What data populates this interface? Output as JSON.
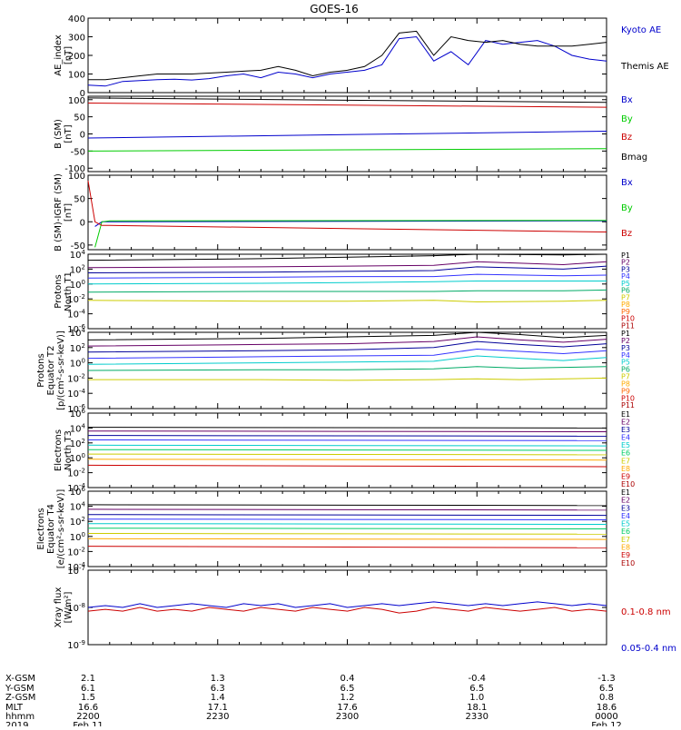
{
  "title": "GOES-16",
  "time_axis": {
    "rows": [
      {
        "label": "X-GSM",
        "values": [
          "2.1",
          "1.3",
          "0.4",
          "-0.4",
          "-1.3"
        ]
      },
      {
        "label": "Y-GSM",
        "values": [
          "6.1",
          "6.3",
          "6.5",
          "6.5",
          "6.5"
        ]
      },
      {
        "label": "Z-GSM",
        "values": [
          "1.5",
          "1.4",
          "1.2",
          "1.0",
          "0.8"
        ]
      },
      {
        "label": "MLT",
        "values": [
          "16.6",
          "17.1",
          "17.6",
          "18.1",
          "18.6"
        ]
      },
      {
        "label": "hhmm",
        "values": [
          "2200",
          "2230",
          "2300",
          "2330",
          "0000"
        ]
      },
      {
        "label": "2019",
        "values": [
          "Feb 11",
          "",
          "",
          "",
          "Feb 12"
        ]
      }
    ]
  },
  "chart_data": [
    {
      "type": "line",
      "ylabel": [
        "AE_index",
        "[nT]"
      ],
      "ylim": [
        0,
        400
      ],
      "yscale": "linear",
      "yticks": [
        0,
        100,
        200,
        300,
        400
      ],
      "yticklabels": [
        "0",
        "100",
        "200",
        "300",
        "400"
      ],
      "x": [
        0,
        2,
        4,
        6,
        8,
        10,
        12,
        14,
        16,
        18,
        20,
        22,
        24,
        26,
        28,
        30,
        32,
        34,
        36,
        38,
        40,
        42,
        44,
        46,
        48,
        50,
        52,
        54,
        56,
        58,
        60
      ],
      "series": [
        {
          "name": "Kyoto AE",
          "color": "#0000cc",
          "values": [
            40,
            35,
            60,
            65,
            70,
            72,
            68,
            75,
            90,
            100,
            80,
            110,
            100,
            80,
            100,
            110,
            120,
            150,
            290,
            300,
            170,
            220,
            150,
            280,
            260,
            270,
            280,
            250,
            200,
            180,
            170
          ]
        },
        {
          "name": "Themis AE",
          "color": "#000000",
          "values": [
            70,
            70,
            80,
            90,
            100,
            100,
            100,
            105,
            110,
            115,
            120,
            140,
            120,
            90,
            110,
            120,
            140,
            200,
            320,
            330,
            200,
            300,
            280,
            270,
            280,
            260,
            250,
            250,
            250,
            260,
            270
          ]
        }
      ]
    },
    {
      "type": "line",
      "ylabel": [
        "B (SM)",
        "[nT]"
      ],
      "ylim": [
        -110,
        110
      ],
      "yscale": "linear",
      "yticks": [
        -100,
        -50,
        0,
        50,
        100
      ],
      "yticklabels": [
        "-100",
        "-50",
        "0",
        "50",
        "100"
      ],
      "x": [
        0,
        60
      ],
      "series": [
        {
          "name": "Bx",
          "color": "#0000cc",
          "values": [
            -12,
            8
          ]
        },
        {
          "name": "By",
          "color": "#00cc00",
          "values": [
            -50,
            -43
          ]
        },
        {
          "name": "Bz",
          "color": "#cc0000",
          "values": [
            90,
            78
          ]
        },
        {
          "name": "Bmag",
          "color": "#000000",
          "values": [
            105,
            92
          ]
        }
      ]
    },
    {
      "type": "line",
      "ylabel": [
        "B (SM)-IGRF (SM)",
        "[nT]"
      ],
      "ylim": [
        -60,
        100
      ],
      "yscale": "linear",
      "yticks": [
        -50,
        0,
        50,
        100
      ],
      "yticklabels": [
        "-50",
        "0",
        "50",
        "100"
      ],
      "x": [
        0,
        0.8,
        1.6,
        2.5,
        60
      ],
      "series": [
        {
          "name": "Bx",
          "color": "#0000cc",
          "values": [
            null,
            -10,
            0,
            0,
            2
          ]
        },
        {
          "name": "By",
          "color": "#00cc00",
          "values": [
            null,
            -55,
            0,
            2,
            3
          ]
        },
        {
          "name": "Bz",
          "color": "#cc0000",
          "values": [
            88,
            0,
            -8,
            -8,
            -22
          ]
        }
      ]
    },
    {
      "type": "line",
      "ylabel": [
        "Protons",
        "North T1"
      ],
      "yscale": "log",
      "ylim": [
        -6,
        4
      ],
      "yticks": [
        -6,
        -4,
        -2,
        0,
        2,
        4
      ],
      "x": [
        0,
        20,
        30,
        40,
        45,
        55,
        60
      ],
      "series": [
        {
          "name": "P1",
          "color": "#000000",
          "values": [
            3.2,
            3.4,
            3.6,
            3.8,
            4.0,
            3.9,
            4.1
          ]
        },
        {
          "name": "P2",
          "color": "#660066",
          "values": [
            2.2,
            2.3,
            2.4,
            2.5,
            3.0,
            2.6,
            3.0
          ]
        },
        {
          "name": "P3",
          "color": "#000099",
          "values": [
            1.5,
            1.6,
            1.7,
            1.8,
            2.3,
            2.0,
            2.4
          ]
        },
        {
          "name": "P4",
          "color": "#3333ff",
          "values": [
            0.8,
            0.9,
            1.0,
            1.0,
            1.3,
            1.1,
            1.2
          ]
        },
        {
          "name": "P5",
          "color": "#00cccc",
          "values": [
            0.0,
            0.1,
            0.2,
            0.3,
            0.4,
            0.4,
            0.4
          ]
        },
        {
          "name": "P6",
          "color": "#00aa66",
          "values": [
            -1.1,
            -1.0,
            -1.0,
            -1.0,
            -0.9,
            -0.9,
            -0.8
          ]
        },
        {
          "name": "P7",
          "color": "#cccc00",
          "values": [
            -2.2,
            -2.3,
            -2.3,
            -2.2,
            -2.4,
            -2.3,
            -2.2
          ]
        },
        {
          "name": "P8",
          "color": "#ffaa00",
          "values": [
            null,
            null,
            null,
            null,
            null,
            null,
            null
          ]
        },
        {
          "name": "P9",
          "color": "#ff6600",
          "values": [
            null,
            null,
            null,
            null,
            null,
            null,
            null
          ]
        },
        {
          "name": "P10",
          "color": "#cc0000",
          "values": [
            null,
            null,
            null,
            null,
            null,
            null,
            null
          ]
        },
        {
          "name": "P11",
          "color": "#aa0000",
          "values": [
            null,
            null,
            null,
            null,
            null,
            null,
            null
          ]
        }
      ]
    },
    {
      "type": "line",
      "ylabel": [
        "Protons",
        "Equator T2",
        "[p/(cm²-s-sr-keV)]"
      ],
      "yscale": "log",
      "ylim": [
        -6,
        4
      ],
      "yticks": [
        -6,
        -4,
        -2,
        0,
        2,
        4
      ],
      "x": [
        0,
        20,
        30,
        40,
        45,
        50,
        55,
        60
      ],
      "series": [
        {
          "name": "P1",
          "color": "#000000",
          "values": [
            3.0,
            3.2,
            3.4,
            3.6,
            4.0,
            3.7,
            3.3,
            3.6
          ]
        },
        {
          "name": "P2",
          "color": "#660066",
          "values": [
            2.2,
            2.4,
            2.5,
            2.8,
            3.4,
            3.0,
            2.7,
            3.1
          ]
        },
        {
          "name": "P3",
          "color": "#000099",
          "values": [
            1.4,
            1.6,
            1.7,
            2.0,
            2.8,
            2.4,
            2.1,
            2.5
          ]
        },
        {
          "name": "P4",
          "color": "#3333ff",
          "values": [
            0.6,
            0.8,
            0.9,
            1.0,
            1.8,
            1.5,
            1.2,
            1.6
          ]
        },
        {
          "name": "P5",
          "color": "#00cccc",
          "values": [
            -0.2,
            0.0,
            0.1,
            0.2,
            0.9,
            0.6,
            0.3,
            0.7
          ]
        },
        {
          "name": "P6",
          "color": "#00aa66",
          "values": [
            -1.0,
            -0.9,
            -0.9,
            -0.8,
            -0.5,
            -0.7,
            -0.6,
            -0.5
          ]
        },
        {
          "name": "P7",
          "color": "#cccc00",
          "values": [
            -2.2,
            -2.2,
            -2.3,
            -2.2,
            -2.1,
            -2.2,
            -2.1,
            -2.0
          ]
        },
        {
          "name": "P8",
          "color": "#ffaa00",
          "values": [
            null,
            null,
            null,
            null,
            null,
            null,
            null,
            null
          ]
        },
        {
          "name": "P9",
          "color": "#ff6600",
          "values": [
            null,
            null,
            null,
            null,
            null,
            null,
            null,
            null
          ]
        },
        {
          "name": "P10",
          "color": "#cc0000",
          "values": [
            null,
            null,
            null,
            null,
            null,
            null,
            null,
            null
          ]
        },
        {
          "name": "P11",
          "color": "#aa0000",
          "values": [
            null,
            null,
            null,
            null,
            null,
            null,
            null,
            null
          ]
        }
      ]
    },
    {
      "type": "line",
      "ylabel": [
        "Electrons",
        "North T3"
      ],
      "yscale": "log",
      "ylim": [
        -4,
        6
      ],
      "yticks": [
        -4,
        -2,
        0,
        2,
        4,
        6
      ],
      "x": [
        0,
        60
      ],
      "series": [
        {
          "name": "E1",
          "color": "#000000",
          "values": [
            4.1,
            4.0
          ]
        },
        {
          "name": "E2",
          "color": "#660066",
          "values": [
            3.6,
            3.5
          ]
        },
        {
          "name": "E3",
          "color": "#000099",
          "values": [
            3.0,
            2.9
          ]
        },
        {
          "name": "E4",
          "color": "#3333ff",
          "values": [
            2.4,
            2.3
          ]
        },
        {
          "name": "E5",
          "color": "#00cccc",
          "values": [
            1.7,
            1.6
          ]
        },
        {
          "name": "E6",
          "color": "#00cc66",
          "values": [
            1.1,
            1.0
          ]
        },
        {
          "name": "E7",
          "color": "#cccc00",
          "values": [
            0.5,
            0.4
          ]
        },
        {
          "name": "E8",
          "color": "#ffaa00",
          "values": [
            -0.2,
            -0.3
          ]
        },
        {
          "name": "E9",
          "color": "#cc0000",
          "values": [
            -1.0,
            -1.2
          ]
        },
        {
          "name": "E10",
          "color": "#aa0000",
          "values": [
            null,
            null
          ]
        }
      ]
    },
    {
      "type": "line",
      "ylabel": [
        "Electrons",
        "Equator T4",
        "[e/(cm²-s-sr-keV)]"
      ],
      "yscale": "log",
      "ylim": [
        -4,
        6
      ],
      "yticks": [
        -4,
        -2,
        0,
        2,
        4,
        6
      ],
      "x": [
        0,
        60
      ],
      "series": [
        {
          "name": "E1",
          "color": "#000000",
          "values": [
            4.2,
            4.1
          ]
        },
        {
          "name": "E2",
          "color": "#660066",
          "values": [
            3.6,
            3.5
          ]
        },
        {
          "name": "E3",
          "color": "#000099",
          "values": [
            2.9,
            2.8
          ]
        },
        {
          "name": "E4",
          "color": "#3333ff",
          "values": [
            2.3,
            2.2
          ]
        },
        {
          "name": "E5",
          "color": "#00cccc",
          "values": [
            1.7,
            1.6
          ]
        },
        {
          "name": "E6",
          "color": "#00cc66",
          "values": [
            1.1,
            1.0
          ]
        },
        {
          "name": "E7",
          "color": "#cccc00",
          "values": [
            0.4,
            0.3
          ]
        },
        {
          "name": "E8",
          "color": "#ffaa00",
          "values": [
            -0.3,
            -0.4
          ]
        },
        {
          "name": "E9",
          "color": "#cc0000",
          "values": [
            -1.3,
            -1.5
          ]
        },
        {
          "name": "E10",
          "color": "#aa0000",
          "values": [
            null,
            null
          ]
        }
      ]
    },
    {
      "type": "line",
      "ylabel": [
        "Xray flux",
        "[W/m²]"
      ],
      "yscale": "log",
      "ylim": [
        -9,
        -7
      ],
      "yticks": [
        -9,
        -8,
        -7
      ],
      "x": [
        0,
        2,
        4,
        6,
        8,
        10,
        12,
        14,
        16,
        18,
        20,
        22,
        24,
        26,
        28,
        30,
        32,
        34,
        36,
        38,
        40,
        42,
        44,
        46,
        48,
        50,
        52,
        54,
        56,
        58,
        60
      ],
      "series": [
        {
          "name": "0.1-0.8 nm",
          "color": "#cc0000",
          "values": [
            -8.1,
            -8.05,
            -8.1,
            -8.0,
            -8.1,
            -8.05,
            -8.1,
            -8.0,
            -8.05,
            -8.1,
            -8.0,
            -8.05,
            -8.1,
            -8.0,
            -8.05,
            -8.1,
            -8.0,
            -8.05,
            -8.15,
            -8.1,
            -8.0,
            -8.05,
            -8.1,
            -8.0,
            -8.05,
            -8.1,
            -8.05,
            -8.0,
            -8.1,
            -8.05,
            -8.1
          ]
        },
        {
          "name": "0.05-0.4 nm",
          "color": "#0000cc",
          "values": [
            -8.0,
            -7.95,
            -8.0,
            -7.9,
            -8.0,
            -7.95,
            -7.9,
            -7.95,
            -8.0,
            -7.9,
            -7.95,
            -7.9,
            -8.0,
            -7.95,
            -7.9,
            -8.0,
            -7.95,
            -7.9,
            -7.95,
            -7.9,
            -7.85,
            -7.9,
            -7.95,
            -7.9,
            -7.95,
            -7.9,
            -7.85,
            -7.9,
            -7.95,
            -7.9,
            -7.95
          ]
        }
      ]
    }
  ]
}
